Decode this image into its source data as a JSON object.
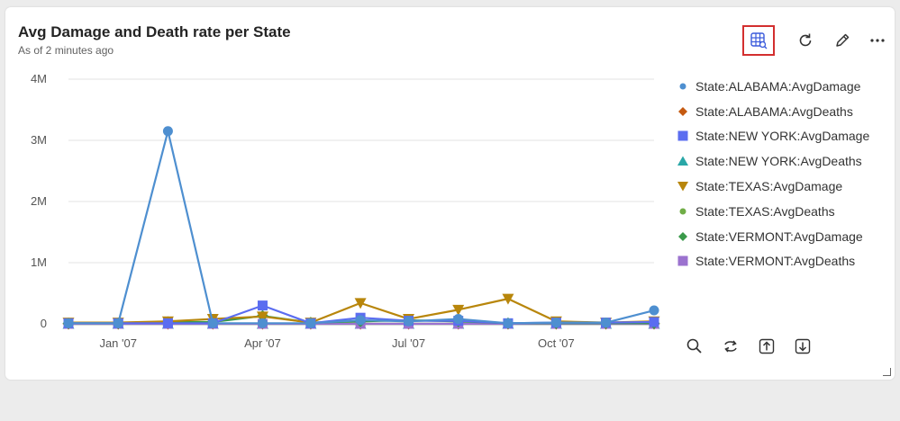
{
  "card": {
    "title": "Avg Damage and Death rate per State",
    "subtitle": "As of 2 minutes ago"
  },
  "toolbar": {
    "icons": [
      "table-view-icon",
      "refresh-icon",
      "edit-icon",
      "more-icon"
    ]
  },
  "chart_tools": [
    "zoom-icon",
    "reset-icon",
    "upload-icon",
    "download-icon"
  ],
  "chart_data": {
    "type": "line",
    "x": [
      "2006-12-01",
      "2007-01-01",
      "2007-02-01",
      "2007-03-01",
      "2007-04-01",
      "2007-05-01",
      "2007-06-01",
      "2007-07-01",
      "2007-08-01",
      "2007-09-01",
      "2007-10-01",
      "2007-11-01",
      "2007-12-01"
    ],
    "x_ticks": [
      "Jan '07",
      "Apr '07",
      "Jul '07",
      "Oct '07"
    ],
    "y_ticks": [
      "0",
      "1M",
      "2M",
      "3M",
      "4M"
    ],
    "ylim": [
      0,
      4000000
    ],
    "grid": true,
    "legend_position": "right",
    "series": [
      {
        "name": "State:ALABAMA:AvgDamage",
        "color": "#4e8fd0",
        "marker": "circle",
        "values": [
          10000,
          10000,
          3150000,
          10000,
          10000,
          10000,
          60000,
          40000,
          80000,
          10000,
          20000,
          20000,
          220000
        ]
      },
      {
        "name": "State:ALABAMA:AvgDeaths",
        "color": "#c55a11",
        "marker": "diamond",
        "values": [
          0,
          0,
          0,
          0,
          0,
          0,
          0,
          0,
          0,
          0,
          0,
          0,
          0
        ]
      },
      {
        "name": "State:NEW YORK:AvgDamage",
        "color": "#5b6df0",
        "marker": "square",
        "values": [
          10000,
          10000,
          10000,
          10000,
          300000,
          10000,
          100000,
          50000,
          50000,
          10000,
          20000,
          20000,
          30000
        ]
      },
      {
        "name": "State:NEW YORK:AvgDeaths",
        "color": "#2aa7a7",
        "marker": "triangle-up",
        "values": [
          0,
          0,
          0,
          0,
          0,
          0,
          0,
          0,
          0,
          0,
          0,
          0,
          0
        ]
      },
      {
        "name": "State:TEXAS:AvgDamage",
        "color": "#b8860b",
        "marker": "triangle-down",
        "values": [
          20000,
          20000,
          40000,
          80000,
          120000,
          20000,
          340000,
          80000,
          230000,
          410000,
          40000,
          20000,
          40000
        ]
      },
      {
        "name": "State:TEXAS:AvgDeaths",
        "color": "#70ad47",
        "marker": "circle",
        "values": [
          0,
          0,
          0,
          0,
          0,
          0,
          0,
          0,
          0,
          0,
          0,
          0,
          0
        ]
      },
      {
        "name": "State:VERMONT:AvgDamage",
        "color": "#3a9a4a",
        "marker": "diamond",
        "values": [
          10000,
          10000,
          30000,
          30000,
          130000,
          20000,
          40000,
          60000,
          40000,
          10000,
          10000,
          10000,
          10000
        ]
      },
      {
        "name": "State:VERMONT:AvgDeaths",
        "color": "#9b72cf",
        "marker": "square",
        "values": [
          0,
          0,
          0,
          0,
          0,
          0,
          0,
          0,
          0,
          0,
          0,
          0,
          0
        ]
      }
    ]
  }
}
